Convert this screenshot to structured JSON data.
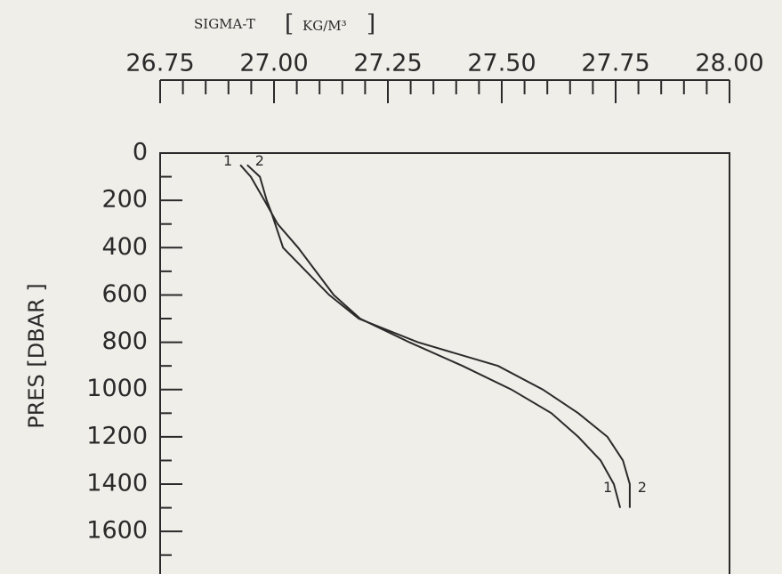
{
  "chart_data": {
    "type": "line",
    "x_label": "SIGMA-T",
    "x_units": "KG/M³",
    "y_label": "PRES [DBAR ]",
    "xlim": [
      26.75,
      28.0
    ],
    "xticks": [
      26.75,
      {
        "value": 27.0,
        "label": "27.00"
      },
      27.25,
      {
        "value": 27.5,
        "label": "27.50"
      },
      27.75,
      {
        "value": 28.0,
        "label": "28.00"
      }
    ],
    "xminorticks": [
      26.8,
      26.85,
      26.9,
      26.95,
      27.05,
      27.1,
      27.15,
      27.2,
      27.3,
      27.35,
      27.4,
      27.45,
      27.55,
      27.6,
      27.65,
      27.7,
      27.8,
      27.85,
      27.9,
      27.95
    ],
    "ylim": [
      0,
      1780
    ],
    "y_inverted": true,
    "yticks": [
      0,
      200,
      400,
      600,
      800,
      1000,
      1200,
      1400,
      1600
    ],
    "yminorticks": [
      100,
      300,
      500,
      700,
      900,
      1100,
      1300,
      1500,
      1700
    ],
    "color": "#2a2a2a",
    "series": [
      {
        "name": "1",
        "x": [
          26.926,
          26.949,
          26.979,
          27.008,
          27.053,
          27.092,
          27.131,
          27.189,
          27.297,
          27.414,
          27.521,
          27.609,
          27.668,
          27.717,
          27.746,
          27.76
        ],
        "y": [
          50,
          100,
          200,
          300,
          400,
          500,
          600,
          700,
          800,
          900,
          1000,
          1100,
          1200,
          1300,
          1400,
          1500
        ]
      },
      {
        "name": "2",
        "x": [
          26.941,
          26.969,
          26.984,
          26.994,
          27.02,
          27.121,
          27.186,
          27.316,
          27.492,
          27.59,
          27.668,
          27.732,
          27.766,
          27.781,
          27.781
        ],
        "y": [
          50,
          100,
          200,
          250,
          400,
          600,
          700,
          800,
          900,
          1000,
          1100,
          1200,
          1300,
          1400,
          1500
        ]
      }
    ]
  }
}
